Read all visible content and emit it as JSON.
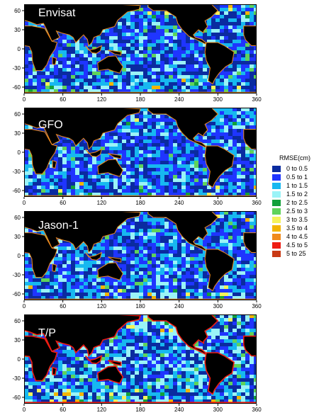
{
  "panels": [
    {
      "title": "Envisat"
    },
    {
      "title": "GFO"
    },
    {
      "title": "Jason-1"
    },
    {
      "title": "T/P"
    }
  ],
  "x_ticks": [
    "0",
    "60",
    "120",
    "180",
    "240",
    "300",
    "360"
  ],
  "y_ticks": [
    "60",
    "30",
    "0",
    "-30",
    "-60"
  ],
  "legend": {
    "title": "RMSE(cm)",
    "items": [
      {
        "label": "0  to  0.5",
        "color": "#0a2ba0"
      },
      {
        "label": "0.5  to  1",
        "color": "#1f35ff"
      },
      {
        "label": "1  to  1.5",
        "color": "#17b8f0"
      },
      {
        "label": "1.5  to  2",
        "color": "#9af3f7"
      },
      {
        "label": "2  to  2.5",
        "color": "#12a03a"
      },
      {
        "label": "2.5  to  3",
        "color": "#5fd35a"
      },
      {
        "label": "3  to  3.5",
        "color": "#f5f25a"
      },
      {
        "label": "3.5  to  4",
        "color": "#f2b400"
      },
      {
        "label": "4  to  4.5",
        "color": "#f08a1c"
      },
      {
        "label": "4.5  to  5",
        "color": "#ee1c12"
      },
      {
        "label": "5  to  25",
        "color": "#c93a15"
      }
    ]
  }
}
